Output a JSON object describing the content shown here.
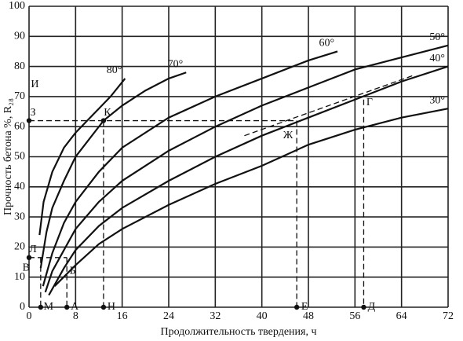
{
  "chart_data": {
    "type": "line",
    "x_label": "Продолжительность твердения, ч",
    "y_label": "Прочность бетона %, R₂₈",
    "xlim": [
      0,
      72
    ],
    "xticks": [
      0,
      8,
      16,
      24,
      32,
      40,
      48,
      56,
      64,
      72
    ],
    "ylim": [
      0,
      100
    ],
    "yticks": [
      0,
      10,
      20,
      30,
      40,
      50,
      60,
      70,
      80,
      90,
      100
    ],
    "grid": true,
    "series": [
      {
        "name": "80°",
        "color": "#111111",
        "x": [
          1.8,
          2.5,
          4,
          6,
          8,
          10,
          12,
          14,
          16.5
        ],
        "y": [
          24,
          35,
          45,
          53,
          58,
          62,
          66,
          70,
          76
        ]
      },
      {
        "name": "70°",
        "color": "#111111",
        "x": [
          2,
          3,
          4,
          6,
          8,
          10,
          12.8,
          16,
          20,
          24,
          27
        ],
        "y": [
          13,
          25,
          33,
          42,
          50,
          55,
          62,
          67,
          72,
          76,
          78
        ]
      },
      {
        "name": "60°",
        "color": "#111111",
        "x": [
          2.4,
          4,
          6,
          8,
          12,
          16,
          24,
          32,
          40,
          48,
          53
        ],
        "y": [
          7,
          18,
          28,
          35,
          45,
          53,
          63,
          70,
          76,
          82,
          85
        ]
      },
      {
        "name": "50°",
        "color": "#111111",
        "x": [
          2.8,
          4,
          8,
          12,
          16,
          24,
          32,
          40,
          48,
          56,
          64,
          72
        ],
        "y": [
          5,
          12,
          26,
          35,
          42,
          52,
          60,
          67,
          73,
          79,
          83,
          87
        ]
      },
      {
        "name": "40°",
        "color": "#111111",
        "x": [
          3.4,
          6,
          8,
          12,
          16,
          24,
          32,
          40,
          48,
          56,
          64,
          72
        ],
        "y": [
          4,
          13,
          19,
          27,
          33,
          42,
          50,
          57,
          63,
          69,
          75,
          80
        ]
      },
      {
        "name": "30°",
        "color": "#111111",
        "x": [
          4.4,
          8,
          12,
          16,
          24,
          32,
          40,
          48,
          56,
          64,
          72
        ],
        "y": [
          7,
          14,
          21,
          26,
          34,
          41,
          47,
          54,
          59,
          63,
          66
        ]
      }
    ],
    "guides": [
      {
        "x": [
          0,
          46
        ],
        "y": [
          62,
          62
        ]
      },
      {
        "x": [
          12.8,
          12.8
        ],
        "y": [
          62,
          0
        ]
      },
      {
        "x": [
          46,
          46
        ],
        "y": [
          62,
          0
        ]
      },
      {
        "x": [
          57.5,
          57.5
        ],
        "y": [
          69,
          0
        ]
      },
      {
        "x": [
          0,
          6.5
        ],
        "y": [
          16.5,
          16.5
        ]
      },
      {
        "x": [
          2,
          2
        ],
        "y": [
          16.5,
          0
        ]
      },
      {
        "x": [
          6.5,
          6.5
        ],
        "y": [
          16.5,
          0
        ]
      },
      {
        "x": [
          37,
          66
        ],
        "y": [
          57,
          77
        ]
      }
    ],
    "points": [
      {
        "text": "З",
        "x": 0,
        "y": 62
      },
      {
        "text": "К",
        "x": 12.8,
        "y": 62
      },
      {
        "text": "Л",
        "x": 0,
        "y": 16.5
      },
      {
        "text": "М",
        "x": 2,
        "y": 0
      },
      {
        "text": "А",
        "x": 6.5,
        "y": 0
      },
      {
        "text": "Н",
        "x": 12.8,
        "y": 0
      },
      {
        "text": "Е",
        "x": 46,
        "y": 0
      },
      {
        "text": "Д",
        "x": 57.5,
        "y": 0
      }
    ],
    "annotations": [
      {
        "text": "И",
        "x": 1,
        "y": 74
      },
      {
        "text": "В",
        "x": -0.5,
        "y": 13
      },
      {
        "text": "Б",
        "x": 7.5,
        "y": 12
      },
      {
        "text": "Ж",
        "x": 44.5,
        "y": 57
      },
      {
        "text": "Г",
        "x": 58.5,
        "y": 68
      }
    ]
  }
}
